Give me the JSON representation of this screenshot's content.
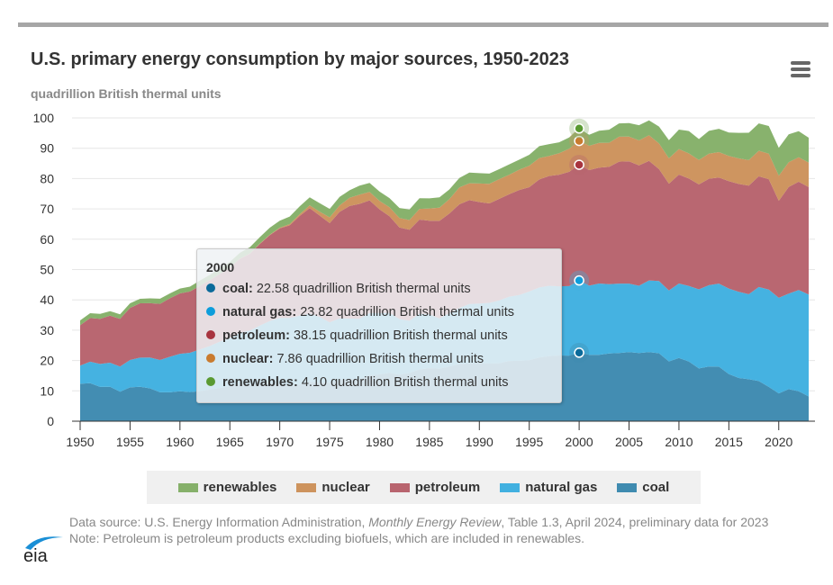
{
  "header": {
    "title": "U.S. primary energy consumption by major sources, 1950-2023",
    "menu_icon": "hamburger-menu-icon"
  },
  "chart_data": {
    "type": "area",
    "stacked": true,
    "title": "U.S. primary energy consumption by major sources, 1950-2023",
    "ylabel": "quadrillion British thermal units",
    "xlabel": "",
    "ylim": [
      0,
      100
    ],
    "xlim": [
      1950,
      2023
    ],
    "yticks": [
      "0",
      "10",
      "20",
      "30",
      "40",
      "50",
      "60",
      "70",
      "80",
      "90",
      "100"
    ],
    "xticks": [
      "1950",
      "1955",
      "1960",
      "1965",
      "1970",
      "1975",
      "1980",
      "1985",
      "1990",
      "1995",
      "2000",
      "2005",
      "2010",
      "2015",
      "2020"
    ],
    "grid": true,
    "legend_position": "bottom",
    "x_start": 1950,
    "series": [
      {
        "name": "coal",
        "color": "#3f8bb0",
        "values": [
          12.35,
          12.55,
          11.31,
          11.37,
          9.72,
          11.17,
          11.35,
          10.82,
          9.53,
          9.52,
          9.84,
          9.62,
          9.91,
          10.41,
          10.96,
          11.58,
          12.14,
          11.91,
          12.33,
          12.38,
          12.27,
          11.6,
          12.08,
          12.97,
          12.66,
          12.66,
          13.58,
          13.92,
          13.77,
          15.04,
          15.42,
          15.91,
          15.32,
          15.89,
          17.07,
          17.48,
          17.26,
          18.01,
          18.85,
          19.07,
          19.17,
          18.99,
          19.12,
          19.84,
          19.91,
          20.09,
          21.0,
          21.45,
          21.66,
          21.62,
          22.58,
          21.91,
          21.9,
          22.32,
          22.47,
          22.8,
          22.45,
          22.75,
          22.39,
          19.69,
          20.83,
          19.66,
          17.38,
          18.04,
          17.99,
          15.55,
          14.23,
          13.84,
          13.24,
          11.32,
          9.18,
          10.55,
          9.87,
          8.17
        ]
      },
      {
        "name": "natural gas",
        "color": "#41b0e0",
        "values": [
          5.97,
          7.05,
          7.55,
          7.91,
          8.33,
          9.0,
          9.61,
          10.19,
          10.66,
          11.72,
          12.39,
          12.93,
          13.73,
          14.4,
          15.29,
          15.77,
          16.99,
          17.94,
          19.21,
          20.68,
          21.79,
          22.47,
          22.7,
          22.51,
          21.73,
          19.95,
          20.35,
          19.93,
          20.0,
          20.67,
          20.24,
          19.75,
          18.36,
          17.22,
          18.39,
          17.7,
          16.59,
          17.64,
          18.45,
          19.6,
          19.6,
          20.03,
          20.71,
          21.23,
          21.73,
          22.67,
          23.09,
          23.22,
          22.83,
          22.91,
          23.82,
          22.77,
          23.51,
          22.83,
          22.91,
          22.56,
          22.22,
          23.66,
          23.84,
          23.42,
          24.57,
          24.95,
          26.09,
          26.81,
          27.38,
          28.19,
          28.4,
          28.03,
          31.0,
          32.06,
          31.5,
          31.5,
          33.39,
          33.6
        ]
      },
      {
        "name": "petroleum",
        "color": "#b8646e",
        "values": [
          13.3,
          14.4,
          14.9,
          15.5,
          15.7,
          17.2,
          17.9,
          17.9,
          18.5,
          19.3,
          19.9,
          20.2,
          21.0,
          21.7,
          22.3,
          23.2,
          24.4,
          25.3,
          26.9,
          28.3,
          29.5,
          30.5,
          32.9,
          34.8,
          33.4,
          32.7,
          35.1,
          37.1,
          37.9,
          37.1,
          34.2,
          31.9,
          30.2,
          30.0,
          31.0,
          30.9,
          32.2,
          32.8,
          34.2,
          34.2,
          33.5,
          32.8,
          33.5,
          33.8,
          34.6,
          34.4,
          35.6,
          36.2,
          36.8,
          37.7,
          38.15,
          38.1,
          38.2,
          38.7,
          40.2,
          40.3,
          39.7,
          39.4,
          36.9,
          35.2,
          35.9,
          35.4,
          34.6,
          35.1,
          35.0,
          35.4,
          35.6,
          35.8,
          36.5,
          36.4,
          32.0,
          35.2,
          35.7,
          35.4
        ]
      },
      {
        "name": "nuclear",
        "color": "#cd935d",
        "values": [
          0,
          0,
          0,
          0,
          0,
          0,
          0,
          0,
          0,
          0,
          0.01,
          0.02,
          0.03,
          0.04,
          0.04,
          0.04,
          0.06,
          0.09,
          0.14,
          0.15,
          0.24,
          0.41,
          0.58,
          0.91,
          1.27,
          1.9,
          2.11,
          2.7,
          3.02,
          2.78,
          2.74,
          3.01,
          3.13,
          3.2,
          3.55,
          4.08,
          4.38,
          4.75,
          5.59,
          5.6,
          6.1,
          6.42,
          6.48,
          6.41,
          6.69,
          7.08,
          7.09,
          6.6,
          7.07,
          7.61,
          7.86,
          8.03,
          8.14,
          7.96,
          8.22,
          8.16,
          8.22,
          8.46,
          8.43,
          8.36,
          8.43,
          8.27,
          8.06,
          8.27,
          8.34,
          8.34,
          8.43,
          8.42,
          8.44,
          8.45,
          8.25,
          8.13,
          8.05,
          8.1
        ]
      },
      {
        "name": "renewables",
        "color": "#86b06a",
        "values": [
          1.6,
          1.6,
          1.6,
          1.5,
          1.5,
          1.5,
          1.5,
          1.6,
          1.7,
          1.6,
          1.6,
          1.6,
          1.7,
          1.7,
          1.8,
          1.9,
          1.9,
          2.1,
          2.1,
          2.3,
          2.3,
          2.5,
          2.6,
          2.6,
          2.8,
          2.8,
          2.8,
          2.5,
          3.0,
          3.0,
          3.1,
          3.0,
          3.3,
          3.5,
          3.5,
          3.3,
          3.4,
          3.2,
          3.1,
          3.5,
          3.4,
          3.4,
          3.3,
          3.4,
          3.3,
          3.6,
          3.9,
          3.9,
          3.6,
          3.7,
          4.1,
          3.6,
          4.0,
          4.3,
          4.4,
          4.5,
          5.0,
          4.9,
          5.6,
          6.0,
          6.4,
          7.4,
          6.9,
          7.5,
          7.7,
          7.7,
          8.4,
          9.0,
          9.0,
          9.1,
          9.2,
          9.2,
          8.6,
          8.2
        ]
      }
    ],
    "highlight_year": 2000
  },
  "tooltip": {
    "year": "2000",
    "rows": [
      {
        "label": "coal:",
        "value": "22.58 quadrillion British thermal units",
        "color": "#0b6a9a"
      },
      {
        "label": "natural gas:",
        "value": "23.82 quadrillion British thermal units",
        "color": "#0d9ddb"
      },
      {
        "label": "petroleum:",
        "value": "38.15 quadrillion British thermal units",
        "color": "#a8343f"
      },
      {
        "label": "nuclear:",
        "value": "7.86 quadrillion British thermal units",
        "color": "#c97b2f"
      },
      {
        "label": "renewables:",
        "value": "4.10 quadrillion British thermal units",
        "color": "#5a9a32"
      }
    ]
  },
  "legend": [
    {
      "label": "renewables",
      "color": "#86b06a"
    },
    {
      "label": "nuclear",
      "color": "#cd935d"
    },
    {
      "label": "petroleum",
      "color": "#b8646e"
    },
    {
      "label": "natural gas",
      "color": "#41b0e0"
    },
    {
      "label": "coal",
      "color": "#3f8bb0"
    }
  ],
  "footer": {
    "source_prefix": "Data source: U.S. Energy Information Administration, ",
    "source_italic": "Monthly Energy Review",
    "source_suffix": ", Table 1.3, April 2024, preliminary data for 2023",
    "note": "Note: Petroleum is petroleum products excluding biofuels, which are included in renewables.",
    "logo": "eia"
  }
}
